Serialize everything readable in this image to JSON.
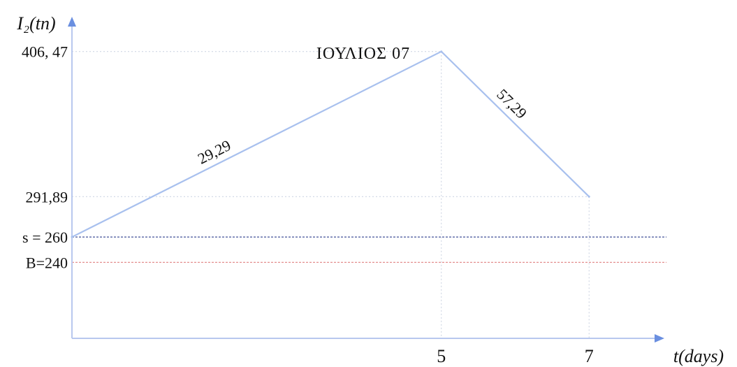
{
  "chart_data": {
    "type": "line",
    "title": "ΙΟΥΛΙΟΣ   07",
    "xlabel": "t(days)",
    "ylabel": "I₂(tn)",
    "xlim": [
      0,
      8
    ],
    "ylim": [
      180,
      435
    ],
    "x_ticks": [
      "5",
      "7"
    ],
    "x_tick_values": [
      5,
      7
    ],
    "y_ticks": [
      "406, 47",
      "291,89"
    ],
    "y_tick_values": [
      406.47,
      291.89
    ],
    "series": [
      {
        "points": [
          {
            "x": 0,
            "y": 260
          },
          {
            "x": 5,
            "y": 406.47
          },
          {
            "x": 7,
            "y": 291.89
          }
        ]
      }
    ],
    "segment_labels": [
      {
        "text": "29,29",
        "from_x": 0,
        "to_x": 5
      },
      {
        "text": "57,29",
        "from_x": 5,
        "to_x": 7
      }
    ],
    "reference_lines": [
      {
        "label": "s = 260",
        "value": 260,
        "color": "#2c3e8c"
      },
      {
        "label": "B=240",
        "value": 240,
        "color": "#e08080"
      }
    ],
    "colors": {
      "axis": "#6a8fe0",
      "line": "#a8c0ee",
      "guide": "#c8d0e0"
    },
    "grid": false
  }
}
